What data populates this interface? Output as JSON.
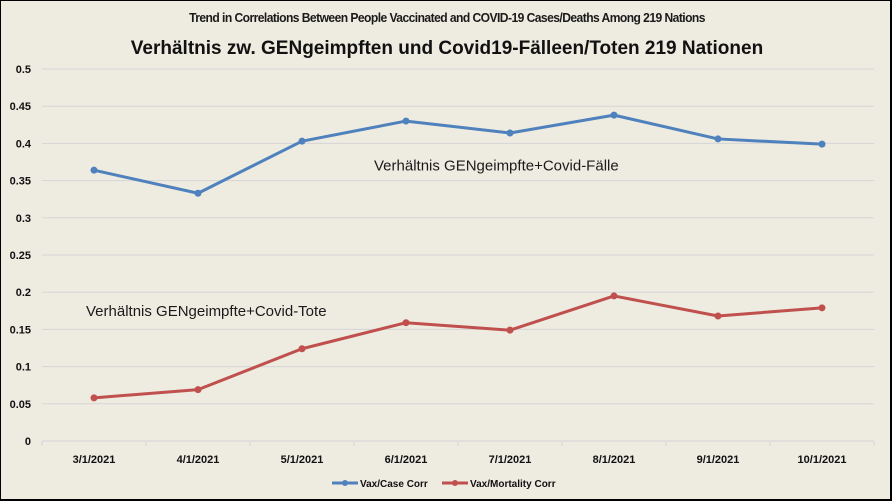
{
  "chart_data": {
    "type": "line",
    "title": "Trend in Correlations Between People Vaccinated and COVID-19 Cases/Deaths Among 219 Nations",
    "subtitle": "Verhältnis zw. GENgeimpften und Covid19-Fälleen/Toten 219 Nationen",
    "xlabel": "",
    "ylabel": "",
    "categories": [
      "3/1/2021",
      "4/1/2021",
      "5/1/2021",
      "6/1/2021",
      "7/1/2021",
      "8/1/2021",
      "9/1/2021",
      "10/1/2021"
    ],
    "ylim": [
      0,
      0.5
    ],
    "yticks": [
      0,
      0.05,
      0.1,
      0.15,
      0.2,
      0.25,
      0.3,
      0.35,
      0.4,
      0.45,
      0.5
    ],
    "ytick_labels": [
      "0",
      "0.05",
      "0.1",
      "0.15",
      "0.2",
      "0.25",
      "0.3",
      "0.35",
      "0.4",
      "0.45",
      "0.5"
    ],
    "grid": true,
    "legend_position": "bottom",
    "series": [
      {
        "name": "Vax/Case Corr",
        "color": "#4f81bd",
        "values": [
          0.364,
          0.333,
          0.403,
          0.43,
          0.414,
          0.438,
          0.406,
          0.399
        ]
      },
      {
        "name": "Vax/Mortality Corr",
        "color": "#c0504d",
        "values": [
          0.058,
          0.069,
          0.124,
          0.159,
          0.149,
          0.195,
          0.168,
          0.179
        ]
      }
    ],
    "annotations": [
      {
        "text": "Verhältnis GENgeimpfte+Covid-Fälle",
        "near_series": "Vax/Case Corr",
        "x_category": "5/1/2021",
        "y": 0.37
      },
      {
        "text": "Verhältnis GENgeimpfte+Covid-Tote",
        "near_series": "Vax/Mortality Corr",
        "x_category": "3/1/2021",
        "y": 0.175
      }
    ]
  }
}
